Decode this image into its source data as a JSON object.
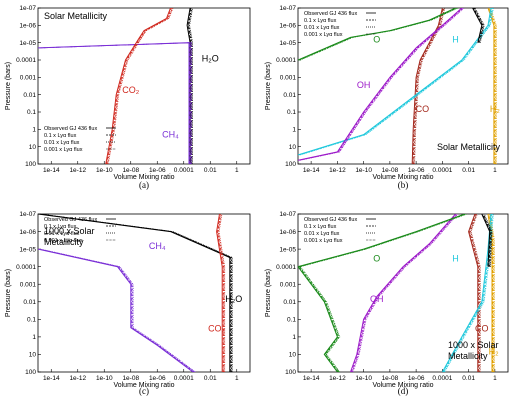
{
  "chart_data": [
    {
      "type": "line",
      "caption": "(a)",
      "annotation": "Solar Metallicity",
      "xlabel": "Volume Mixing ratio",
      "ylabel": "Pressure (bars)",
      "x_scale": "log",
      "y_scale": "log",
      "y_inverted": true,
      "xlim": [
        1e-15,
        10
      ],
      "ylim": [
        100,
        1e-07
      ],
      "x_ticks": [
        "1e-14",
        "1e-12",
        "1e-10",
        "1e-08",
        "1e-06",
        "0.0001",
        "0.01",
        "1"
      ],
      "y_ticks": [
        "1e-07",
        "1e-06",
        "1e-05",
        "0.0001",
        "0.001",
        "0.01",
        "0.1",
        "1",
        "10",
        "100"
      ],
      "legend": [
        "Observed GJ 436 flux",
        "0.1 x Lyα flux",
        "0.01 x Lyα flux",
        "0.001 x Lyα flux"
      ],
      "labels": [
        {
          "text": "CO₂",
          "color": "#d0281e",
          "x": 1e-08,
          "y": 0.008
        },
        {
          "text": "CH₄",
          "color": "#7a2fd6",
          "x": 1e-05,
          "y": 3
        },
        {
          "text": "H₂O",
          "color": "#000000",
          "x": 0.01,
          "y": 0.00012
        }
      ],
      "series": [
        {
          "color": "#000000",
          "points": [
            [
              0.0003,
              100
            ],
            [
              0.0003,
              1e-05
            ],
            [
              0.00018,
              1e-06
            ],
            [
              0.0003,
              1e-07
            ]
          ]
        },
        {
          "color": "#7a2fd6",
          "points": [
            [
              0.00025,
              100
            ],
            [
              0.00025,
              1e-05
            ],
            [
              1e-15,
              2e-05
            ]
          ]
        },
        {
          "color": "#d0281e",
          "points": [
            [
              1.3e-10,
              100
            ],
            [
              4e-10,
              1
            ],
            [
              8e-10,
              0.01
            ],
            [
              4e-09,
              0.0001
            ],
            [
              4e-08,
              6e-06
            ],
            [
              1e-07,
              2e-06
            ],
            [
              5e-06,
              4e-07
            ],
            [
              1e-05,
              1e-07
            ]
          ]
        }
      ]
    },
    {
      "type": "line",
      "caption": "(b)",
      "annotation": "Solar Metallicity",
      "xlabel": "Volume Mixing ratio",
      "ylabel": "Pressure (bars)",
      "x_scale": "log",
      "y_scale": "log",
      "y_inverted": true,
      "xlim": [
        1e-15,
        10
      ],
      "ylim": [
        100,
        1e-07
      ],
      "x_ticks": [
        "1e-14",
        "1e-12",
        "1e-10",
        "1e-08",
        "1e-06",
        "0.0001",
        "0.01",
        "1"
      ],
      "y_ticks": [
        "1e-07",
        "1e-06",
        "1e-05",
        "0.0001",
        "0.001",
        "0.01",
        "0.1",
        "1",
        "10",
        "100"
      ],
      "legend": [
        "Observed GJ 436 flux",
        "0.1 x Lyα flux",
        "0.01 x Lyα flux",
        "0.001 x Lyα flux"
      ],
      "labels": [
        {
          "text": "O",
          "color": "#1a8a1a",
          "x": 1e-09,
          "y": 1e-05
        },
        {
          "text": "OH",
          "color": "#9c1ac9",
          "x": 1e-10,
          "y": 0.004
        },
        {
          "text": "H",
          "color": "#1ec8dc",
          "x": 0.001,
          "y": 1e-05
        },
        {
          "text": "CO",
          "color": "#a3261a",
          "x": 3e-06,
          "y": 0.1
        },
        {
          "text": "H₂",
          "color": "#e0a000",
          "x": 1,
          "y": 0.1
        }
      ],
      "series": [
        {
          "color": "#e0a000",
          "points": [
            [
              0.85,
              100
            ],
            [
              0.85,
              1e-06
            ],
            [
              0.3,
              1e-07
            ]
          ]
        },
        {
          "color": "#a3261a",
          "points": [
            [
              5e-07,
              100
            ],
            [
              6e-07,
              1
            ],
            [
              1e-06,
              0.001
            ],
            [
              2e-06,
              0.0001
            ],
            [
              1e-05,
              1e-05
            ],
            [
              5e-05,
              1e-06
            ],
            [
              0.0001,
              1e-07
            ]
          ]
        },
        {
          "color": "#1ec8dc",
          "points": [
            [
              1e-15,
              30
            ],
            [
              1e-10,
              2
            ],
            [
              1e-06,
              0.01
            ],
            [
              0.003,
              0.0001
            ],
            [
              0.3,
              1e-06
            ],
            [
              0.5,
              1e-07
            ]
          ]
        },
        {
          "color": "#9c1ac9",
          "points": [
            [
              1e-15,
              60
            ],
            [
              1e-12,
              20
            ],
            [
              1e-10,
              0.1
            ],
            [
              1e-08,
              0.001
            ],
            [
              1e-06,
              2e-05
            ],
            [
              0.0001,
              1e-06
            ],
            [
              0.003,
              1e-07
            ]
          ]
        },
        {
          "color": "#1a8a1a",
          "points": [
            [
              1e-15,
              0.0001
            ],
            [
              1e-11,
              5e-06
            ],
            [
              1e-08,
              2e-06
            ],
            [
              1e-05,
              5e-07
            ],
            [
              0.001,
              1e-07
            ]
          ]
        },
        {
          "color": "#000000",
          "points": [
            [
              0.05,
              1e-05
            ],
            [
              0.1,
              1e-06
            ],
            [
              0.02,
              1e-07
            ]
          ]
        }
      ]
    },
    {
      "type": "line",
      "caption": "(c)",
      "annotation": "1000 x Solar Metallicity",
      "xlabel": "Volume Mixing ratio",
      "ylabel": "Pressure (bars)",
      "x_scale": "log",
      "y_scale": "log",
      "y_inverted": true,
      "xlim": [
        1e-15,
        10
      ],
      "ylim": [
        100,
        1e-07
      ],
      "x_ticks": [
        "1e-14",
        "1e-12",
        "1e-10",
        "1e-08",
        "1e-06",
        "0.0001",
        "0.01",
        "1"
      ],
      "y_ticks": [
        "1e-07",
        "1e-06",
        "1e-05",
        "0.0001",
        "0.001",
        "0.01",
        "0.1",
        "1",
        "10",
        "100"
      ],
      "legend": [
        "Observed GJ 436 flux",
        "0.1 x Lyα flux",
        "0.01 x Lyα flux",
        "0.001 x Lyα flux"
      ],
      "labels": [
        {
          "text": "CH₄",
          "color": "#7a2fd6",
          "x": 1e-06,
          "y": 1e-05
        },
        {
          "text": "CO₂",
          "color": "#d0281e",
          "x": 0.03,
          "y": 0.5
        },
        {
          "text": "H₂O",
          "color": "#000000",
          "x": 0.6,
          "y": 0.01
        }
      ],
      "series": [
        {
          "color": "#000000",
          "points": [
            [
              0.3,
              100
            ],
            [
              0.3,
              3e-05
            ],
            [
              1e-05,
              1e-06
            ],
            [
              1e-15,
              1e-07
            ]
          ]
        },
        {
          "color": "#7a2fd6",
          "points": [
            [
              0.0005,
              100
            ],
            [
              1e-06,
              3
            ],
            [
              1e-08,
              0.3
            ],
            [
              1e-08,
              0.001
            ],
            [
              1e-09,
              0.0001
            ],
            [
              1e-15,
              1e-05
            ]
          ]
        },
        {
          "color": "#d0281e",
          "points": [
            [
              0.08,
              100
            ],
            [
              0.08,
              0.0001
            ],
            [
              0.03,
              1e-06
            ],
            [
              0.05,
              1e-07
            ]
          ]
        }
      ]
    },
    {
      "type": "line",
      "caption": "(d)",
      "annotation": "1000 x Solar Metallicity",
      "xlabel": "Volume Mixing ratio",
      "ylabel": "Pressure (bars)",
      "x_scale": "log",
      "y_scale": "log",
      "y_inverted": true,
      "xlim": [
        1e-15,
        10
      ],
      "ylim": [
        100,
        1e-07
      ],
      "x_ticks": [
        "1e-14",
        "1e-12",
        "1e-10",
        "1e-08",
        "1e-06",
        "0.0001",
        "0.01",
        "1"
      ],
      "y_ticks": [
        "1e-07",
        "1e-06",
        "1e-05",
        "0.0001",
        "0.001",
        "0.01",
        "0.1",
        "1",
        "10",
        "100"
      ],
      "legend": [
        "Observed GJ 436 flux",
        "0.1 x Lyα flux",
        "0.01 x Lyα flux",
        "0.001 x Lyα flux"
      ],
      "labels": [
        {
          "text": "O",
          "color": "#1a8a1a",
          "x": 1e-09,
          "y": 5e-05
        },
        {
          "text": "OH",
          "color": "#9c1ac9",
          "x": 1e-09,
          "y": 0.01
        },
        {
          "text": "H",
          "color": "#1ec8dc",
          "x": 0.001,
          "y": 5e-05
        },
        {
          "text": "CO",
          "color": "#a3261a",
          "x": 0.1,
          "y": 0.5
        },
        {
          "text": "H₂",
          "color": "#e0a000",
          "x": 0.8,
          "y": 10
        }
      ],
      "series": [
        {
          "color": "#e0a000",
          "points": [
            [
              0.6,
              100
            ],
            [
              0.6,
              3e-06
            ],
            [
              0.3,
              1e-07
            ]
          ]
        },
        {
          "color": "#a3261a",
          "points": [
            [
              0.05,
              100
            ],
            [
              0.05,
              0.0001
            ],
            [
              0.01,
              1e-06
            ],
            [
              0.03,
              1e-07
            ]
          ]
        },
        {
          "color": "#1ec8dc",
          "points": [
            [
              0.0001,
              100
            ],
            [
              0.003,
              1
            ],
            [
              0.1,
              0.01
            ],
            [
              0.3,
              1e-05
            ],
            [
              0.5,
              1e-07
            ]
          ]
        },
        {
          "color": "#9c1ac9",
          "points": [
            [
              1e-11,
              100
            ],
            [
              3e-11,
              10
            ],
            [
              1e-10,
              0.1
            ],
            [
              1e-09,
              0.005
            ],
            [
              1e-07,
              0.0001
            ],
            [
              1e-05,
              5e-06
            ],
            [
              0.001,
              1e-07
            ]
          ]
        },
        {
          "color": "#1a8a1a",
          "points": [
            [
              1e-12,
              100
            ],
            [
              1e-13,
              10
            ],
            [
              1e-12,
              1
            ],
            [
              1e-13,
              0.01
            ],
            [
              1e-15,
              0.0001
            ],
            [
              1e-10,
              1e-05
            ],
            [
              1e-06,
              1e-06
            ],
            [
              0.005,
              1e-07
            ]
          ]
        },
        {
          "color": "#000000",
          "points": [
            [
              0.3,
              0.0001
            ],
            [
              0.4,
              1e-06
            ],
            [
              0.1,
              1e-07
            ]
          ]
        }
      ]
    }
  ]
}
